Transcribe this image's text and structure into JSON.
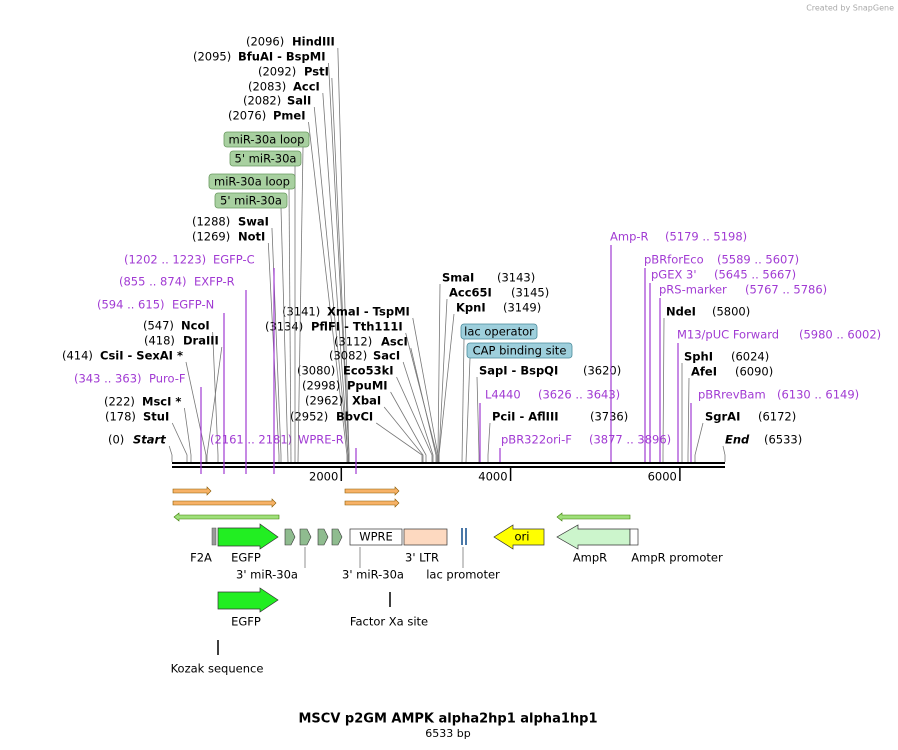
{
  "credit": "Created by SnapGene",
  "title": "MSCV p2GM AMPK alpha2hp1 alpha1hp1",
  "length": "6533 bp",
  "ruler": {
    "xlim": [
      0,
      6533
    ],
    "xticks": [
      2000,
      4000,
      6000
    ]
  },
  "sites": [
    {
      "position": "(2096)",
      "name": "HindIII"
    },
    {
      "position": "(2095)",
      "name": "BfuAI - BspMI"
    },
    {
      "position": "(2092)",
      "name": "PstI"
    },
    {
      "position": "(2083)",
      "name": "AccI"
    },
    {
      "position": "(2082)",
      "name": "SalI"
    },
    {
      "position": "(2076)",
      "name": "PmeI"
    },
    {
      "position": "(1288)",
      "name": "SwaI"
    },
    {
      "position": "(1269)",
      "name": "NotI"
    },
    {
      "position": "(547)",
      "name": "NcoI"
    },
    {
      "position": "(418)",
      "name": "DraIII"
    },
    {
      "position": "(414)",
      "name": "CsiI - SexAI *"
    },
    {
      "position": "(222)",
      "name": "MscI *"
    },
    {
      "position": "(178)",
      "name": "StuI"
    },
    {
      "position": "(0)",
      "name": "Start"
    },
    {
      "position": "(3141)",
      "name": "XmaI - TspMI"
    },
    {
      "position": "(3134)",
      "name": "PflFI - Tth111I"
    },
    {
      "position": "(3112)",
      "name": "AscI"
    },
    {
      "position": "(3082)",
      "name": "SacI"
    },
    {
      "position": "(3080)",
      "name": "Eco53kI"
    },
    {
      "position": "(2998)",
      "name": "PpuMI"
    },
    {
      "position": "(2962)",
      "name": "XbaI"
    },
    {
      "position": "(2952)",
      "name": "BbvCI"
    },
    {
      "position": "(3143)",
      "name": "SmaI"
    },
    {
      "position": "(3145)",
      "name": "Acc65I"
    },
    {
      "position": "(3149)",
      "name": "KpnI"
    },
    {
      "position": "(3620)",
      "name": "SapI - BspQI"
    },
    {
      "position": "(3736)",
      "name": "PciI - AflIII"
    },
    {
      "position": "(6533)",
      "name": "End"
    },
    {
      "position": "(5800)",
      "name": "NdeI"
    },
    {
      "position": "(6024)",
      "name": "SphI"
    },
    {
      "position": "(6090)",
      "name": "AfeI"
    },
    {
      "position": "(6172)",
      "name": "SgrAI"
    }
  ],
  "primers": [
    {
      "range": "(1202 .. 1223)",
      "name": "EGFP-C"
    },
    {
      "range": "(855 .. 874)",
      "name": "EXFP-R"
    },
    {
      "range": "(594 .. 615)",
      "name": "EGFP-N"
    },
    {
      "range": "(343 .. 363)",
      "name": "Puro-F"
    },
    {
      "range": "(2161 .. 2181)",
      "name": "WPRE-R"
    },
    {
      "range": "(3626 .. 3643)",
      "name": "L4440"
    },
    {
      "range": "(3877 .. 3896)",
      "name": "pBR322ori-F"
    },
    {
      "range": "(5179 .. 5198)",
      "name": "Amp-R"
    },
    {
      "range": "(5589 .. 5607)",
      "name": "pBRforEco"
    },
    {
      "range": "(5645 .. 5667)",
      "name": "pGEX 3'"
    },
    {
      "range": "(5767 .. 5786)",
      "name": "pRS-marker"
    },
    {
      "range": "(5980 .. 6002)",
      "name": "M13/pUC Forward"
    },
    {
      "range": "(6130 .. 6149)",
      "name": "pBRrevBam"
    }
  ],
  "boxes": [
    "miR-30a loop",
    "5' miR-30a",
    "miR-30a loop",
    "5' miR-30a",
    "lac operator",
    "CAP binding site"
  ],
  "features": [
    "F2A",
    "EGFP",
    "3' miR-30a",
    "WPRE",
    "3' miR-30a",
    "3' LTR",
    "lac promoter",
    "ori",
    "AmpR",
    "AmpR promoter",
    "EGFP",
    "Factor Xa site",
    "Kozak sequence"
  ]
}
